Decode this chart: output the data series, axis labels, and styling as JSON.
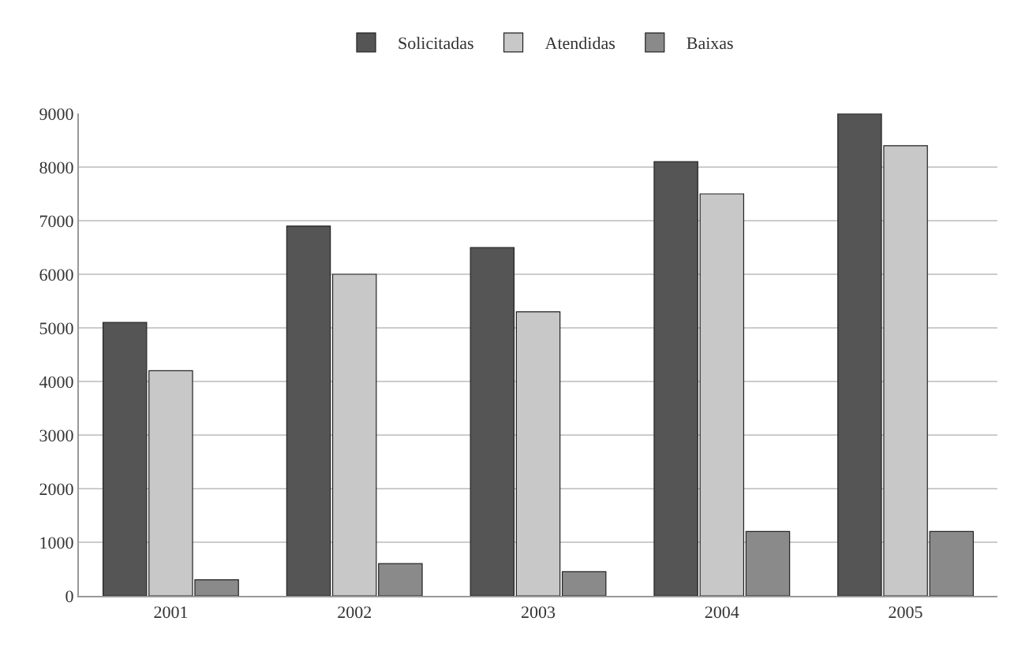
{
  "chart_data": {
    "type": "bar",
    "categories": [
      "2001",
      "2002",
      "2003",
      "2004",
      "2005"
    ],
    "series": [
      {
        "name": "Solicitadas",
        "color": "#555555",
        "values": [
          5100,
          6900,
          6500,
          8100,
          9000
        ]
      },
      {
        "name": "Atendidas",
        "color": "#c8c8c8",
        "values": [
          4200,
          6000,
          5300,
          7500,
          8400
        ]
      },
      {
        "name": "Baixas",
        "color": "#8a8a8a",
        "values": [
          300,
          600,
          450,
          1200,
          1200
        ]
      }
    ],
    "ylim": [
      0,
      9000
    ],
    "yticks": [
      0,
      1000,
      2000,
      3000,
      4000,
      5000,
      6000,
      7000,
      8000,
      9000
    ],
    "grid": "y",
    "legend": "top"
  }
}
